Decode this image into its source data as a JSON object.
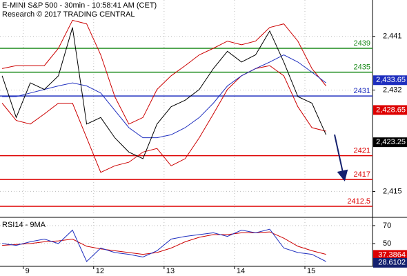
{
  "chart_data": [
    {
      "type": "line",
      "title": "E-MINI S&P 500 - 30min - 10:58:41 AM (CET)",
      "subtitle": "Research © 2017 TRADING CENTRAL",
      "x": [
        -0.3,
        -0.1,
        0.1,
        0.3,
        0.5,
        0.7,
        0.9,
        1.1,
        1.3,
        1.5,
        1.7,
        1.9,
        2.1,
        2.3,
        2.5,
        2.7,
        2.9,
        3.1,
        3.3,
        3.5,
        3.7,
        3.9,
        4.1,
        4.3
      ],
      "xlim": [
        -0.33,
        4.96
      ],
      "xticks": [
        0,
        1,
        2,
        3,
        4
      ],
      "ylim": [
        2411,
        2447.1
      ],
      "yticks": [
        {
          "value": 2441,
          "label": "2,441"
        },
        {
          "value": 2432,
          "label": "2,432"
        },
        {
          "value": 2415,
          "label": "2,415"
        }
      ],
      "grid": true,
      "series": [
        {
          "color": "#cc0000",
          "values": [
            2435.6,
            2436.1,
            2436.1,
            2436.1,
            2439.0,
            2443.7,
            2443.1,
            2437.9,
            2430.9,
            2426.3,
            2427.4,
            2432.1,
            2434.4,
            2436.1,
            2437.9,
            2439.0,
            2440.2,
            2439.6,
            2440.2,
            2442.5,
            2443.1,
            2440.2,
            2435.6,
            2432.7
          ]
        },
        {
          "color": "#cc0000",
          "values": [
            2429.8,
            2426.9,
            2426.3,
            2428.0,
            2429.8,
            2429.8,
            2424.0,
            2418.2,
            2419.3,
            2419.9,
            2421.6,
            2422.2,
            2419.3,
            2420.5,
            2424.0,
            2428.0,
            2432.1,
            2434.4,
            2435.6,
            2436.1,
            2434.4,
            2429.2,
            2425.7,
            2425.1
          ]
        },
        {
          "color": "#1f2fbf",
          "values": [
            2430.9,
            2430.9,
            2431.5,
            2432.1,
            2432.7,
            2433.2,
            2432.7,
            2431.5,
            2428.6,
            2425.7,
            2424.0,
            2424.0,
            2424.5,
            2425.7,
            2427.4,
            2429.8,
            2432.7,
            2434.4,
            2435.6,
            2436.7,
            2437.9,
            2436.7,
            2435.0,
            2433.2
          ]
        },
        {
          "color": "#000000",
          "values": [
            2434.4,
            2427.4,
            2433.2,
            2432.1,
            2434.4,
            2442.5,
            2426.3,
            2427.4,
            2424.0,
            2421.6,
            2420.5,
            2426.3,
            2429.2,
            2430.3,
            2432.1,
            2435.6,
            2438.5,
            2436.7,
            2437.9,
            2441.9,
            2436.7,
            2430.9,
            2429.8,
            2424.5
          ]
        }
      ],
      "levels": [
        {
          "value": 2439,
          "color": "#1a8a1a"
        },
        {
          "value": 2435,
          "color": "#1a8a1a"
        },
        {
          "value": 2431,
          "color": "#1f2fbf"
        },
        {
          "value": 2421,
          "color": "#dd0000"
        },
        {
          "value": 2417,
          "color": "#dd0000"
        },
        {
          "value": 2412.5,
          "color": "#dd0000"
        }
      ],
      "price_tags": [
        {
          "value": 2433.65,
          "label": "2,433.65",
          "color": "#1f2fbf"
        },
        {
          "value": 2428.65,
          "label": "2,428.65",
          "color": "#dd0000"
        },
        {
          "value": 2423.25,
          "label": "2,423.25",
          "color": "#000000"
        }
      ]
    },
    {
      "type": "line",
      "title": "RSI14 - 9MA",
      "x": [
        -0.3,
        -0.1,
        0.1,
        0.3,
        0.5,
        0.7,
        0.9,
        1.1,
        1.3,
        1.5,
        1.7,
        1.9,
        2.1,
        2.3,
        2.5,
        2.7,
        2.9,
        3.1,
        3.3,
        3.5,
        3.7,
        3.9,
        4.1,
        4.3
      ],
      "xlim": [
        -0.33,
        4.96
      ],
      "xticks": [
        {
          "value": 0,
          "label": "9"
        },
        {
          "value": 1,
          "label": "12"
        },
        {
          "value": 2,
          "label": "13"
        },
        {
          "value": 3,
          "label": "14"
        },
        {
          "value": 4,
          "label": "15"
        }
      ],
      "ylim": [
        25.4,
        76.9
      ],
      "yticks": [
        70,
        50
      ],
      "grid": true,
      "series": [
        {
          "color": "#cc0000",
          "values": [
            48,
            49,
            50,
            52,
            53,
            55,
            47,
            44,
            42,
            40,
            38,
            40,
            45,
            52,
            57,
            60,
            60,
            62,
            62,
            63,
            56,
            47,
            42,
            38
          ]
        },
        {
          "color": "#1f2fbf",
          "values": [
            50,
            48,
            52,
            55,
            50,
            65,
            30,
            45,
            40,
            38,
            35,
            42,
            55,
            58,
            60,
            62,
            58,
            65,
            62,
            66,
            45,
            40,
            38,
            30
          ]
        }
      ],
      "price_tags": [
        {
          "value": 37.3864,
          "color": "#dd0000"
        },
        {
          "value": 28.6102,
          "color": "#14206e"
        }
      ]
    }
  ]
}
